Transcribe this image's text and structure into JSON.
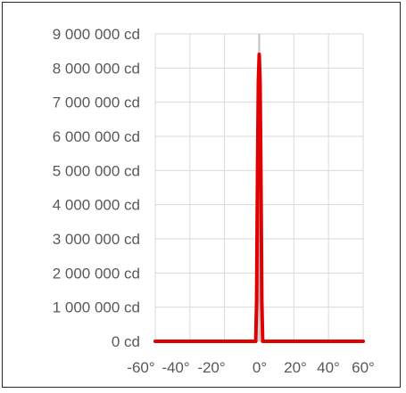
{
  "chart_data": {
    "type": "line",
    "title": "",
    "xlabel": "",
    "ylabel": "",
    "xlim": [
      -60,
      60
    ],
    "ylim": [
      0,
      9000000
    ],
    "grid": true,
    "legend": "none",
    "x_ticks": [
      "-60°",
      "-40°",
      "-20°",
      "0°",
      "20°",
      "40°",
      "60°"
    ],
    "y_ticks": [
      "0 cd",
      "1 000 000 cd",
      "2 000 000 cd",
      "3 000 000 cd",
      "4 000 000 cd",
      "5 000 000 cd",
      "6 000 000 cd",
      "7 000 000 cd",
      "8 000 000 cd",
      "9 000 000 cd"
    ],
    "series": [
      {
        "color": "#e00000",
        "x": [
          -60,
          -2,
          -1.5,
          -1,
          -0.5,
          0,
          0.5,
          1,
          1.5,
          2,
          60
        ],
        "y": [
          0,
          0,
          1200000,
          4800000,
          7600000,
          8400000,
          7600000,
          4800000,
          1200000,
          0,
          0
        ]
      }
    ]
  }
}
